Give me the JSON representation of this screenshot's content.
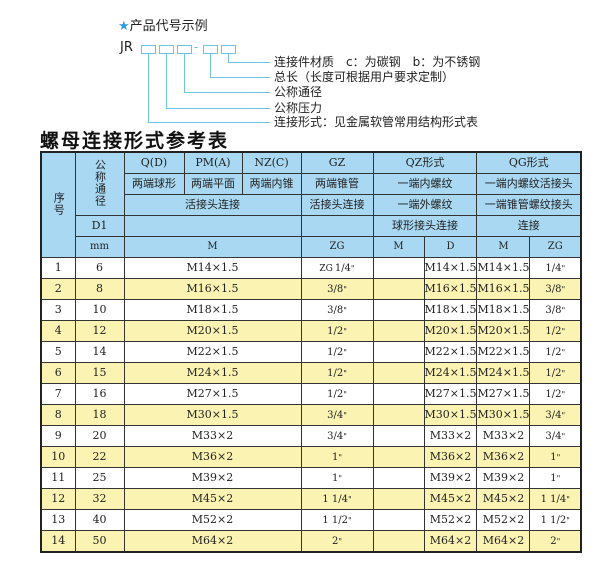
{
  "code_example": {
    "heading": "产品代号示例",
    "star_icon": "star-icon",
    "prefix": "JR",
    "dash": "-",
    "labels": [
      "连接件材质　c：为碳钢　b：为不锈钢",
      "总长（长度可根据用户要求定制）",
      "公称通径",
      "公称压力",
      "连接形式：见金属软管常用结构形式表"
    ]
  },
  "title": "螺母连接形式参考表",
  "colors": {
    "header": "#a9d9f2",
    "odd_row": "#ffffff",
    "even_row": "#fbf3b2",
    "line": "#6cc4e4"
  },
  "header": {
    "seq": "序号",
    "dn": "公称通径",
    "d1": "D1",
    "mm": "mm",
    "qd": "Q(D)",
    "pm": "PM(A)",
    "nz": "NZ(C)",
    "gz": "GZ",
    "qz": "QZ形式",
    "qg": "QG形式",
    "qd_desc": "两端球形",
    "pm_desc": "两端平面",
    "nz_desc": "两端内锥",
    "gz_desc": "两端锥管",
    "qz_desc1": "一端内螺纹",
    "qg_desc1": "一端内螺纹活接头",
    "union": "活接头连接",
    "gz_union": "活接头连接",
    "qz_desc2": "一端外螺纹",
    "qg_desc2": "一端锥管螺纹接头",
    "qz_desc3": "球形接头连接",
    "qg_desc3": "连接",
    "m": "M",
    "zg": "ZG",
    "qz_m": "M",
    "qz_d": "D",
    "qg_m": "M",
    "qg_zg": "ZG"
  },
  "rows": [
    {
      "no": "1",
      "dn": "6",
      "m": "M14×1.5",
      "zg_pre": "ZG",
      "zg": "1/4",
      "d": "M14×1.5",
      "qg_m": "M14×1.5",
      "qg_zg": "1/4"
    },
    {
      "no": "2",
      "dn": "8",
      "m": "M16×1.5",
      "zg_pre": "",
      "zg": "3/8",
      "d": "M16×1.5",
      "qg_m": "M16×1.5",
      "qg_zg": "3/8"
    },
    {
      "no": "3",
      "dn": "10",
      "m": "M18×1.5",
      "zg_pre": "",
      "zg": "3/8",
      "d": "M18×1.5",
      "qg_m": "M18×1.5",
      "qg_zg": "3/8"
    },
    {
      "no": "4",
      "dn": "12",
      "m": "M20×1.5",
      "zg_pre": "",
      "zg": "1/2",
      "d": "M20×1.5",
      "qg_m": "M20×1.5",
      "qg_zg": "1/2"
    },
    {
      "no": "5",
      "dn": "14",
      "m": "M22×1.5",
      "zg_pre": "",
      "zg": "1/2",
      "d": "M22×1.5",
      "qg_m": "M22×1.5",
      "qg_zg": "1/2"
    },
    {
      "no": "6",
      "dn": "15",
      "m": "M24×1.5",
      "zg_pre": "",
      "zg": "1/2",
      "d": "M24×1.5",
      "qg_m": "M24×1.5",
      "qg_zg": "1/2"
    },
    {
      "no": "7",
      "dn": "16",
      "m": "M27×1.5",
      "zg_pre": "",
      "zg": "1/2",
      "d": "M27×1.5",
      "qg_m": "M27×1.5",
      "qg_zg": "1/2"
    },
    {
      "no": "8",
      "dn": "18",
      "m": "M30×1.5",
      "zg_pre": "",
      "zg": "3/4",
      "d": "M30×1.5",
      "qg_m": "M30×1.5",
      "qg_zg": "3/4"
    },
    {
      "no": "9",
      "dn": "20",
      "m": "M33×2",
      "zg_pre": "",
      "zg": "3/4",
      "d": "M33×2",
      "qg_m": "M33×2",
      "qg_zg": "3/4"
    },
    {
      "no": "10",
      "dn": "22",
      "m": "M36×2",
      "zg_pre": "",
      "zg": "1",
      "d": "M36×2",
      "qg_m": "M36×2",
      "qg_zg": "1"
    },
    {
      "no": "11",
      "dn": "25",
      "m": "M39×2",
      "zg_pre": "",
      "zg": "1",
      "d": "M39×2",
      "qg_m": "M39×2",
      "qg_zg": "1"
    },
    {
      "no": "12",
      "dn": "32",
      "m": "M45×2",
      "zg_pre": "",
      "zg": "1 1/4",
      "d": "M45×2",
      "qg_m": "M45×2",
      "qg_zg": "1 1/4"
    },
    {
      "no": "13",
      "dn": "40",
      "m": "M52×2",
      "zg_pre": "",
      "zg": "1 1/2",
      "d": "M52×2",
      "qg_m": "M52×2",
      "qg_zg": "1 1/2"
    },
    {
      "no": "14",
      "dn": "50",
      "m": "M64×2",
      "zg_pre": "",
      "zg": "2",
      "d": "M64×2",
      "qg_m": "M64×2",
      "qg_zg": "2"
    }
  ]
}
